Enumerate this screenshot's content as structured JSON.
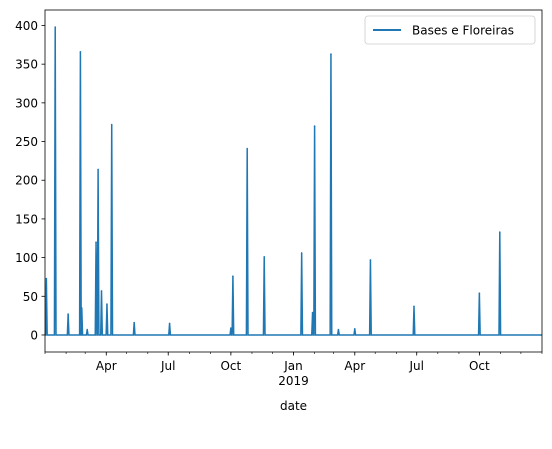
{
  "chart_data": {
    "type": "line",
    "title": "",
    "xlabel": "date",
    "ylabel": "",
    "xlim": [
      "2018-01-01",
      "2019-12-31"
    ],
    "ylim": [
      -22,
      420
    ],
    "x_major_ticks": [
      {
        "date": "2018-04-01",
        "label": "Apr"
      },
      {
        "date": "2018-07-01",
        "label": "Jul"
      },
      {
        "date": "2018-10-01",
        "label": "Oct"
      },
      {
        "date": "2019-01-01",
        "label": "Jan",
        "sublabel": "2019"
      },
      {
        "date": "2019-04-01",
        "label": "Apr"
      },
      {
        "date": "2019-07-01",
        "label": "Jul"
      },
      {
        "date": "2019-10-01",
        "label": "Oct"
      }
    ],
    "y_ticks": [
      0,
      50,
      100,
      150,
      200,
      250,
      300,
      350,
      400
    ],
    "grid": false,
    "legend": {
      "position": "top-right",
      "entries": [
        "Bases e Floreiras"
      ]
    },
    "series": [
      {
        "name": "Bases e Floreiras",
        "color": "#1f77b4",
        "baseline": 0,
        "points": [
          {
            "date": "2018-01-03",
            "value": 73
          },
          {
            "date": "2018-01-16",
            "value": 398
          },
          {
            "date": "2018-02-04",
            "value": 27
          },
          {
            "date": "2018-02-22",
            "value": 366
          },
          {
            "date": "2018-02-24",
            "value": 35
          },
          {
            "date": "2018-03-04",
            "value": 7
          },
          {
            "date": "2018-03-17",
            "value": 120
          },
          {
            "date": "2018-03-20",
            "value": 214
          },
          {
            "date": "2018-03-25",
            "value": 57
          },
          {
            "date": "2018-04-02",
            "value": 40
          },
          {
            "date": "2018-04-09",
            "value": 272
          },
          {
            "date": "2018-05-12",
            "value": 16
          },
          {
            "date": "2018-07-03",
            "value": 15
          },
          {
            "date": "2018-10-01",
            "value": 9
          },
          {
            "date": "2018-10-04",
            "value": 76
          },
          {
            "date": "2018-10-25",
            "value": 241
          },
          {
            "date": "2018-11-19",
            "value": 101
          },
          {
            "date": "2019-01-13",
            "value": 106
          },
          {
            "date": "2019-01-29",
            "value": 29
          },
          {
            "date": "2019-02-01",
            "value": 270
          },
          {
            "date": "2019-02-25",
            "value": 363
          },
          {
            "date": "2019-03-08",
            "value": 7
          },
          {
            "date": "2019-04-01",
            "value": 8
          },
          {
            "date": "2019-04-24",
            "value": 97
          },
          {
            "date": "2019-06-27",
            "value": 37
          },
          {
            "date": "2019-10-01",
            "value": 54
          },
          {
            "date": "2019-10-31",
            "value": 133
          }
        ]
      }
    ]
  }
}
